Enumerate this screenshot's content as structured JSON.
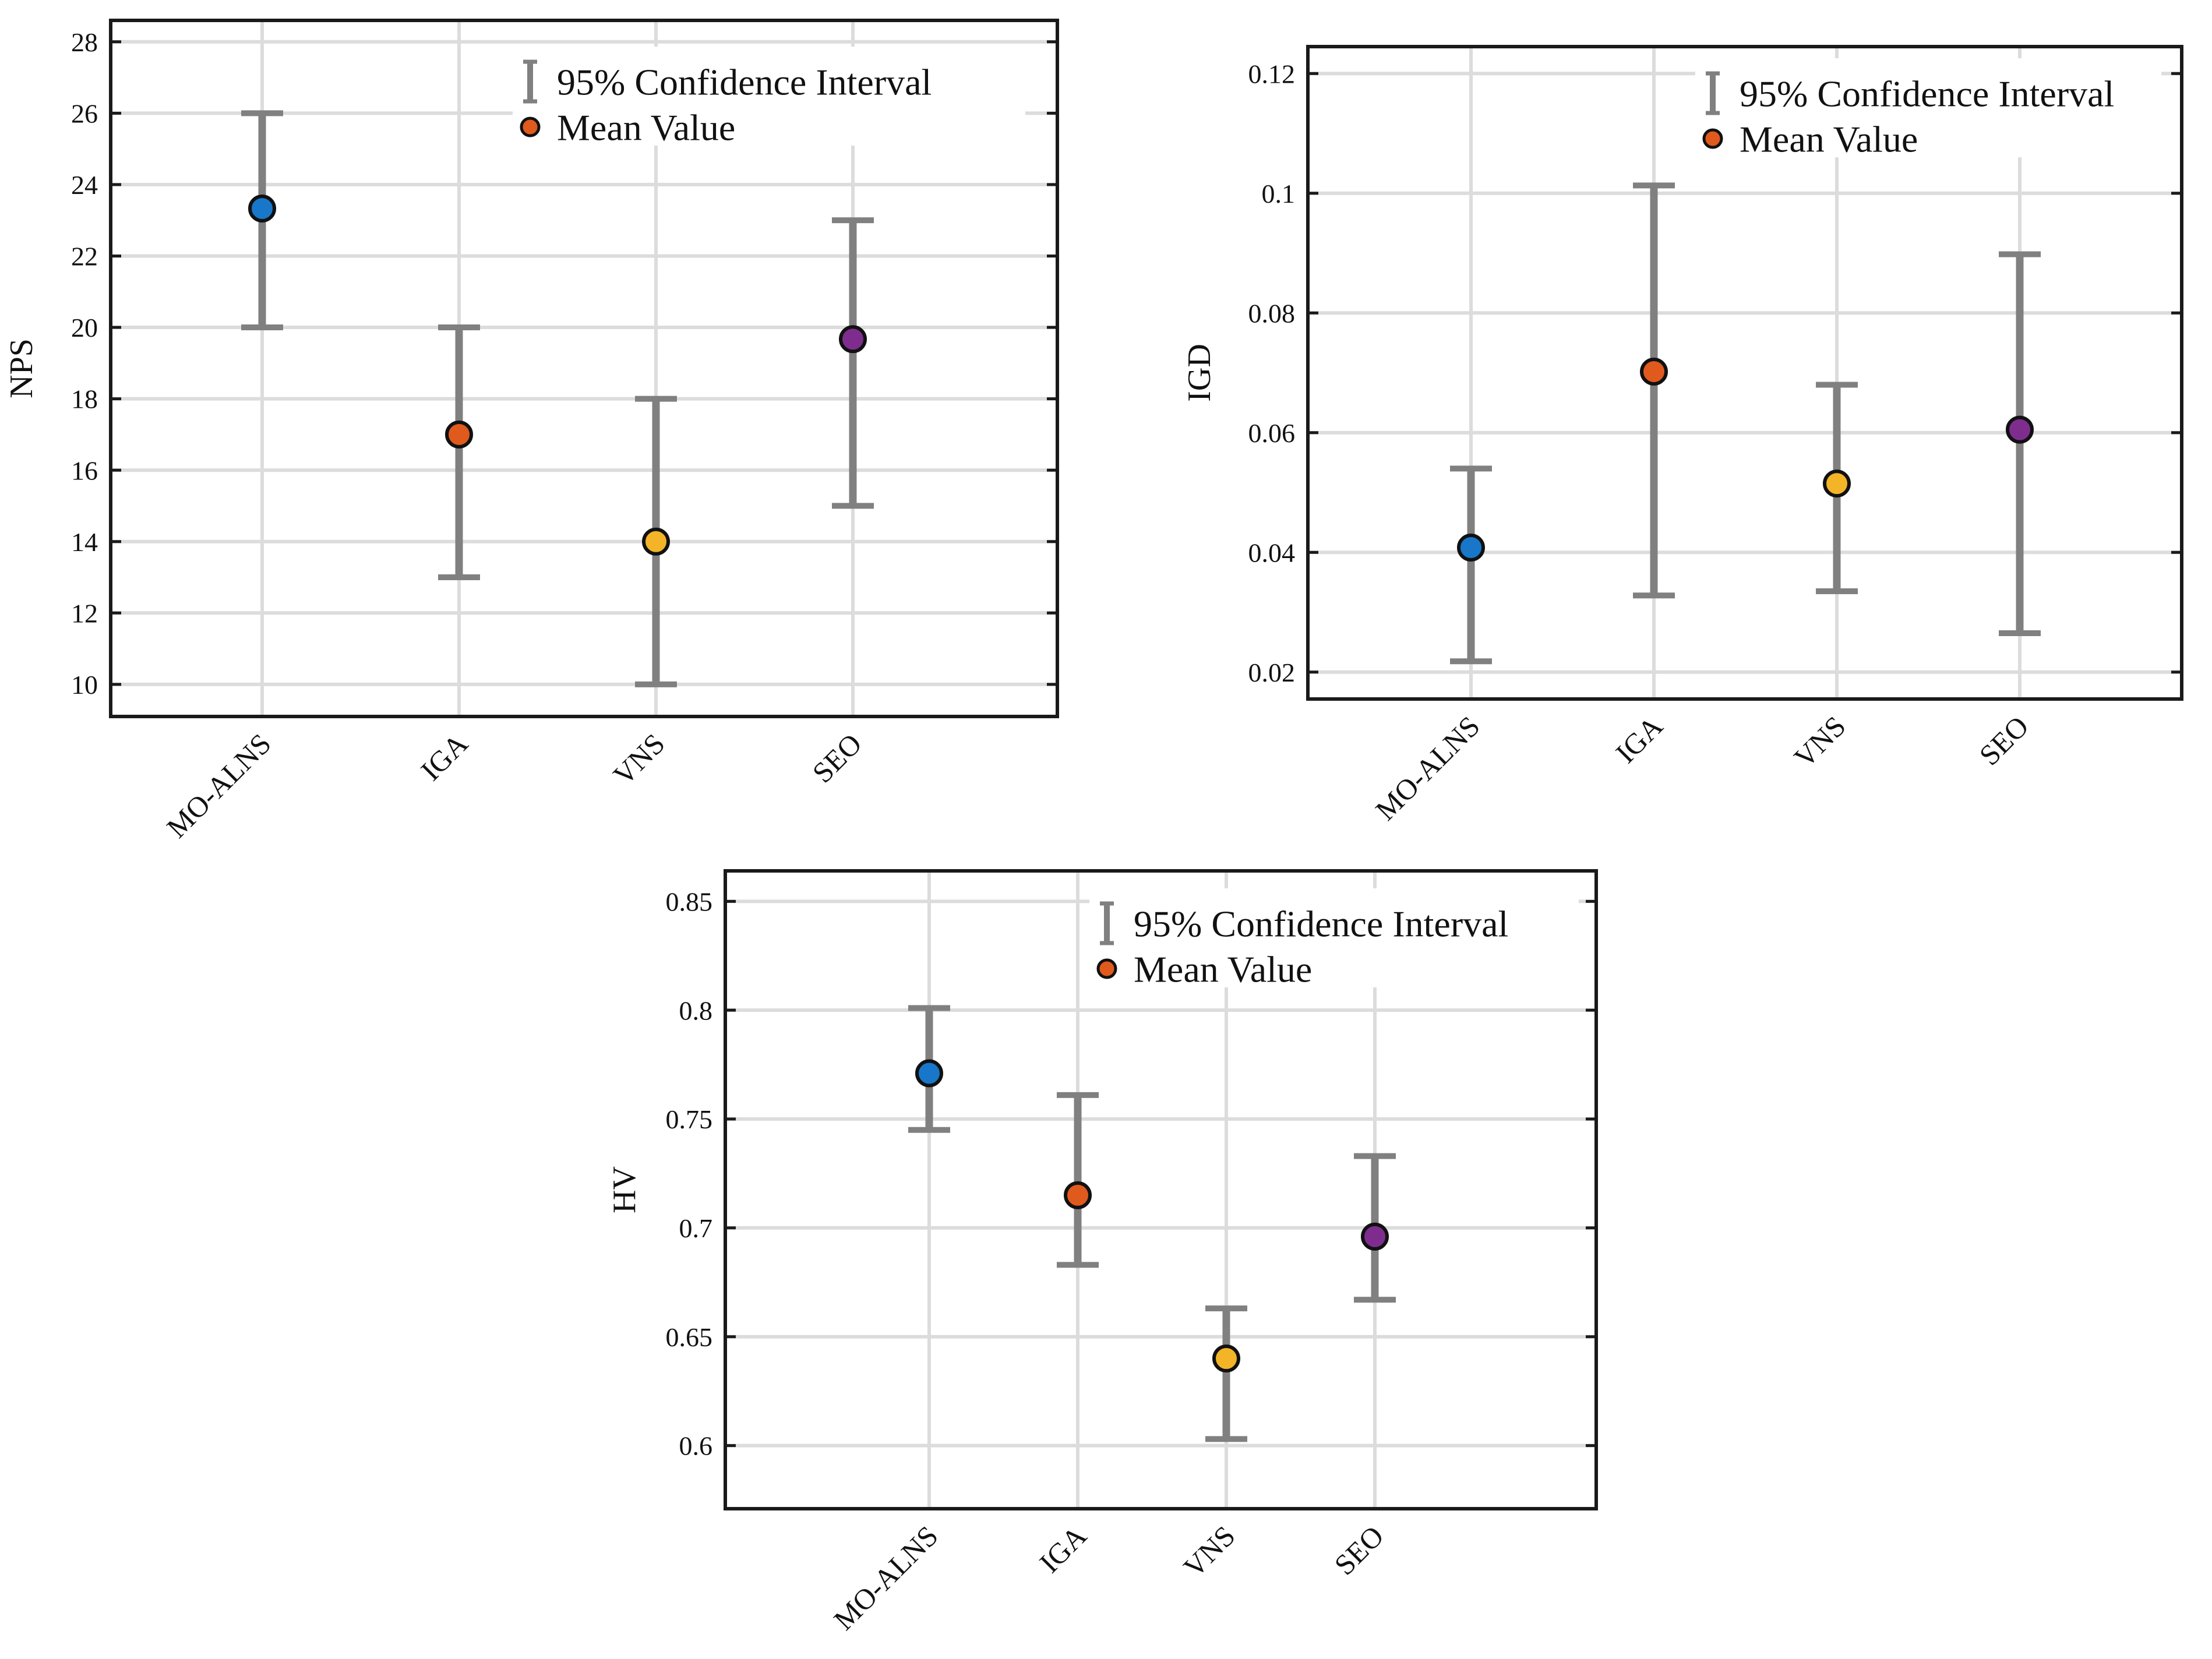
{
  "colors": {
    "ci": "#808080",
    "grid": "#dcdcdc",
    "axis": "#1a1a1a",
    "marker_edge": "#111111",
    "legend_marker": "#e05a1e",
    "series": [
      "#1877c9",
      "#e05a1e",
      "#f3b428",
      "#7e2d8e"
    ]
  },
  "legend": {
    "ci_label": "95% Confidence Interval",
    "mean_label": "Mean Value",
    "ci_icon": "errorbar-icon",
    "mean_icon": "circle-marker-icon"
  },
  "chart_data": [
    {
      "type": "errorbar",
      "ylabel": "NPS",
      "categories": [
        "MO-ALNS",
        "IGA",
        "VNS",
        "SEO"
      ],
      "mean": [
        23.33,
        17.0,
        14.0,
        19.67
      ],
      "ci_low": [
        20,
        13,
        10,
        15
      ],
      "ci_high": [
        26,
        20,
        18,
        23
      ],
      "ylim": [
        9.1,
        28.6
      ],
      "yticks": [
        10,
        12,
        14,
        16,
        18,
        20,
        22,
        24,
        26,
        28
      ],
      "ytick_labels": [
        "10",
        "12",
        "14",
        "16",
        "18",
        "20",
        "22",
        "24",
        "26",
        "28"
      ],
      "grid": true,
      "legend": "top-right"
    },
    {
      "type": "errorbar",
      "ylabel": "IGD",
      "categories": [
        "MO-ALNS",
        "IGA",
        "VNS",
        "SEO"
      ],
      "mean": [
        0.0408,
        0.0702,
        0.0515,
        0.0605
      ],
      "ci_low": [
        0.0218,
        0.0328,
        0.0335,
        0.0265
      ],
      "ci_high": [
        0.054,
        0.1013,
        0.068,
        0.0898
      ],
      "ylim": [
        0.0155,
        0.1245
      ],
      "yticks": [
        0.02,
        0.04,
        0.06,
        0.08,
        0.1,
        0.12
      ],
      "ytick_labels": [
        "0.02",
        "0.04",
        "0.06",
        "0.08",
        "0.1",
        "0.12"
      ],
      "grid": true,
      "legend": "top-right"
    },
    {
      "type": "errorbar",
      "ylabel": "HV",
      "categories": [
        "MO-ALNS",
        "IGA",
        "VNS",
        "SEO"
      ],
      "mean": [
        0.771,
        0.715,
        0.64,
        0.696
      ],
      "ci_low": [
        0.745,
        0.683,
        0.603,
        0.667
      ],
      "ci_high": [
        0.801,
        0.761,
        0.663,
        0.733
      ],
      "ylim": [
        0.571,
        0.864
      ],
      "yticks": [
        0.6,
        0.65,
        0.7,
        0.75,
        0.8,
        0.85
      ],
      "ytick_labels": [
        "0.6",
        "0.65",
        "0.7",
        "0.75",
        "0.8",
        "0.85"
      ],
      "grid": true,
      "legend": "top-right"
    }
  ]
}
